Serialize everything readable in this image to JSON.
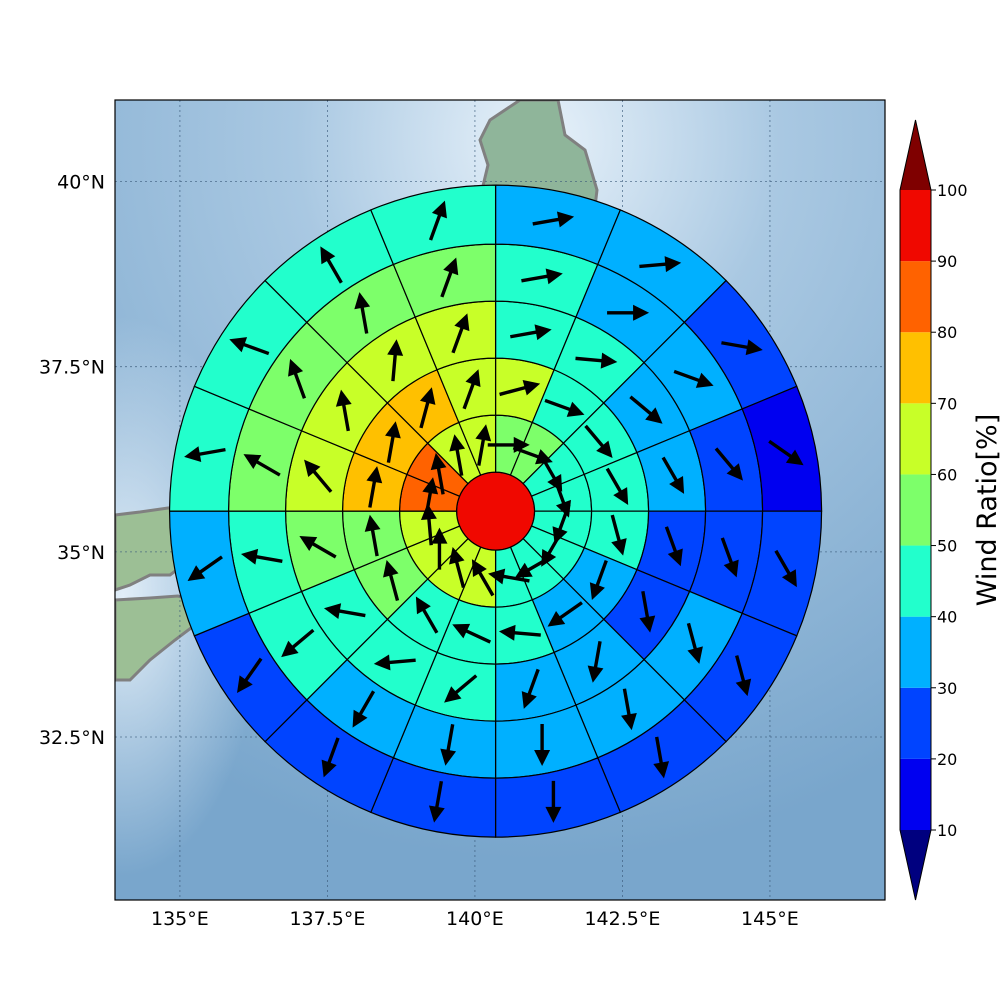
{
  "chart_data": {
    "type": "heatmap",
    "title": "",
    "xlabel": "",
    "ylabel": "",
    "x_ticks": [
      "135°E",
      "137.5°E",
      "140°E",
      "142.5°E",
      "145°E"
    ],
    "x_tick_values": [
      135,
      137.5,
      140,
      142.5,
      145
    ],
    "y_ticks": [
      "40°N",
      "37.5°N",
      "35°N",
      "32.5°N"
    ],
    "y_tick_values": [
      40,
      37.5,
      35,
      32.5
    ],
    "xlim": [
      133.9,
      146.95
    ],
    "ylim": [
      30.3,
      41.1
    ],
    "grid": true,
    "center_lon": 140.35,
    "center_lat": 35.55,
    "n_rings": 6,
    "sectors_per_ring": 16,
    "sector_order": "clockwise from north",
    "rings": [
      {
        "ring": 1,
        "values": [
          95
        ]
      },
      {
        "ring": 2,
        "values": [
          55,
          55,
          45,
          45,
          45,
          45,
          45,
          45,
          60,
          60,
          60,
          60,
          85,
          85,
          60,
          60
        ]
      },
      {
        "ring": 3,
        "values": [
          65,
          45,
          45,
          45,
          45,
          35,
          35,
          45,
          45,
          45,
          55,
          55,
          75,
          75,
          75,
          65
        ]
      },
      {
        "ring": 4,
        "values": [
          45,
          45,
          35,
          35,
          25,
          25,
          35,
          35,
          45,
          45,
          45,
          55,
          65,
          65,
          65,
          65
        ]
      },
      {
        "ring": 5,
        "values": [
          45,
          35,
          35,
          25,
          25,
          35,
          35,
          35,
          35,
          35,
          45,
          45,
          55,
          55,
          55,
          55
        ]
      },
      {
        "ring": 6,
        "values": [
          35,
          35,
          25,
          15,
          25,
          25,
          25,
          25,
          25,
          25,
          25,
          35,
          45,
          45,
          45,
          45
        ]
      }
    ],
    "arrow_direction_deg_ring1": 0,
    "arrows": [
      {
        "ring": 2,
        "directions_deg": [
          90,
          110,
          150,
          160,
          200,
          210,
          240,
          280,
          330,
          345,
          0,
          355,
          10,
          350,
          350,
          10
        ]
      },
      {
        "ring": 3,
        "directions_deg": [
          75,
          110,
          140,
          150,
          165,
          200,
          235,
          275,
          295,
          330,
          345,
          350,
          10,
          10,
          15,
          20
        ]
      },
      {
        "ring": 4,
        "directions_deg": [
          80,
          95,
          130,
          150,
          160,
          170,
          190,
          200,
          230,
          265,
          280,
          300,
          320,
          350,
          5,
          20
        ]
      },
      {
        "ring": 5,
        "directions_deg": [
          80,
          90,
          110,
          140,
          160,
          165,
          170,
          180,
          190,
          210,
          230,
          280,
          300,
          340,
          350,
          20
        ]
      },
      {
        "ring": 6,
        "directions_deg": [
          80,
          85,
          100,
          125,
          150,
          165,
          170,
          180,
          190,
          200,
          215,
          235,
          260,
          290,
          330,
          20
        ]
      }
    ],
    "colorbar": {
      "label": "Wind Ratio[%]",
      "ticks": [
        "10",
        "20",
        "30",
        "40",
        "50",
        "60",
        "70",
        "80",
        "90",
        "100"
      ],
      "bounds": [
        10,
        20,
        30,
        40,
        50,
        60,
        70,
        80,
        90,
        100
      ],
      "colors": [
        "#0000f0",
        "#0044ff",
        "#00b0ff",
        "#22ffcc",
        "#7dff6a",
        "#c8ff28",
        "#ffc000",
        "#ff6200",
        "#f00800"
      ],
      "under_color": "#00007f",
      "over_color": "#7f0000",
      "extend": "both"
    }
  }
}
